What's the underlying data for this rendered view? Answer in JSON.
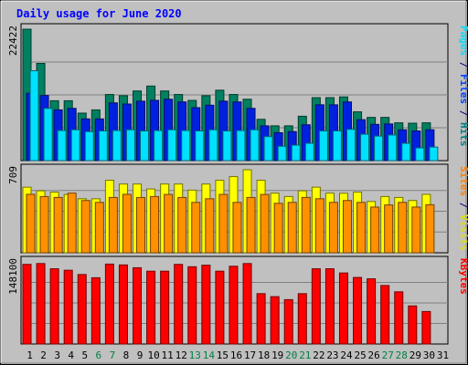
{
  "chart_data": {
    "type": "bar",
    "title": "Daily usage for June 2020",
    "x_ticks": [
      "1",
      "2",
      "3",
      "4",
      "5",
      "6",
      "7",
      "8",
      "9",
      "10",
      "11",
      "12",
      "13",
      "14",
      "15",
      "16",
      "17",
      "18",
      "19",
      "20",
      "21",
      "22",
      "23",
      "24",
      "25",
      "26",
      "27",
      "28",
      "29",
      "30",
      "31"
    ],
    "weekend_days": [
      6,
      7,
      13,
      14,
      20,
      21,
      27,
      28
    ],
    "days_with_data": 30,
    "panels": [
      {
        "id": "hits",
        "ymax_label": "22422",
        "ymax": 22422,
        "label_parts": [
          {
            "text": "Pages",
            "color": "#00e0ff"
          },
          {
            "text": " / ",
            "color": "#000080"
          },
          {
            "text": "Files",
            "color": "#0040ff"
          },
          {
            "text": " / ",
            "color": "#000080"
          },
          {
            "text": "Hits",
            "color": "#008080"
          }
        ],
        "series": [
          {
            "name": "Hits",
            "color": "#008060",
            "values": [
              22422,
              16580,
              10210,
              10210,
              8100,
              8650,
              11280,
              11070,
              11880,
              12720,
              11880,
              11280,
              10270,
              11070,
              12010,
              11280,
              10470,
              7040,
              5930,
              5930,
              7570,
              10740,
              10740,
              10870,
              8320,
              7370,
              7370,
              6450,
              6380,
              6450
            ]
          },
          {
            "name": "Files",
            "color": "#0020e0",
            "values": [
              11500,
              11110,
              8650,
              8910,
              7110,
              7110,
              9850,
              9650,
              10140,
              10280,
              10470,
              10010,
              9030,
              9450,
              10140,
              10010,
              8910,
              5930,
              4760,
              4950,
              6110,
              9520,
              9520,
              10010,
              6980,
              6180,
              6250,
              5260,
              5060,
              5260
            ]
          },
          {
            "name": "Pages",
            "color": "#00e0ff",
            "values": [
              15330,
              8910,
              5130,
              5260,
              4950,
              5060,
              5130,
              5260,
              5060,
              5130,
              5260,
              5130,
              5060,
              5260,
              5060,
              5130,
              5260,
              4100,
              2450,
              2640,
              2950,
              5060,
              5060,
              5330,
              4500,
              4180,
              4370,
              2950,
              2170,
              2310
            ]
          }
        ]
      },
      {
        "id": "visits",
        "ymax_label": "709",
        "ymax": 709,
        "label_parts": [
          {
            "text": "Sites",
            "color": "#ff8000"
          },
          {
            "text": " / ",
            "color": "#000080"
          },
          {
            "text": "Visits",
            "color": "#e0e000"
          }
        ],
        "series": [
          {
            "name": "Visits",
            "color": "#ffff00",
            "values": [
              560,
              529,
              518,
              498,
              461,
              461,
              619,
              587,
              587,
              545,
              587,
              587,
              535,
              587,
              619,
              650,
              709,
              619,
              509,
              480,
              529,
              560,
              509,
              508,
              518,
              438,
              480,
              472,
              446,
              499
            ]
          },
          {
            "name": "Sites",
            "color": "#ff9000",
            "values": [
              499,
              480,
              472,
              509,
              446,
              430,
              472,
              499,
              472,
              480,
              498,
              472,
              430,
              461,
              498,
              430,
              472,
              498,
              422,
              430,
              472,
              461,
              430,
              446,
              430,
              390,
              408,
              430,
              390,
              410
            ]
          }
        ]
      },
      {
        "id": "kbytes",
        "ymax_label": "148100",
        "ymax": 148100,
        "label_parts": [
          {
            "text": "KBytes",
            "color": "#ff0000"
          }
        ],
        "series": [
          {
            "name": "KBytes",
            "color": "#ff0000",
            "values": [
              143600,
              145100,
              135700,
              133000,
              125300,
              119500,
              144100,
              142600,
              137500,
              131300,
              131300,
              143600,
              139300,
              142100,
              131300,
              140200,
              145100,
              90800,
              85400,
              80000,
              90800,
              135700,
              135700,
              128100,
              120000,
              117600,
              105500,
              94100,
              68700,
              58600
            ]
          }
        ]
      }
    ]
  }
}
